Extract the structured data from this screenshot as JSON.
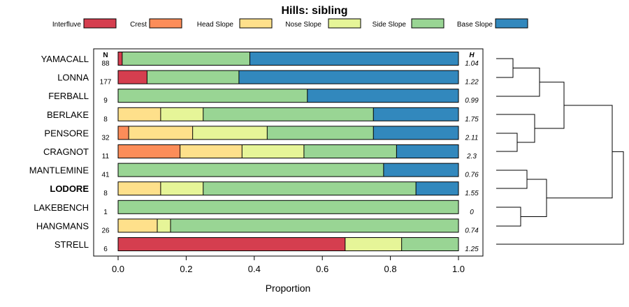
{
  "chart_data": {
    "type": "bar",
    "stacked": true,
    "orientation": "horizontal",
    "title": "Hills: sibling",
    "xlabel": "Proportion",
    "xlim": [
      0,
      1
    ],
    "xticks": [
      "0.0",
      "0.2",
      "0.4",
      "0.6",
      "0.8",
      "1.0"
    ],
    "n_header": "N",
    "h_header": "H",
    "legend": [
      {
        "name": "Interfluve",
        "color": "#D53E4F"
      },
      {
        "name": "Crest",
        "color": "#FC8D59"
      },
      {
        "name": "Head Slope",
        "color": "#FEE08B"
      },
      {
        "name": "Nose Slope",
        "color": "#E6F598"
      },
      {
        "name": "Side Slope",
        "color": "#99D594"
      },
      {
        "name": "Base Slope",
        "color": "#3288BD"
      }
    ],
    "rows": [
      {
        "name": "YAMACALL",
        "n": "88",
        "h": "1.04",
        "bold": false,
        "values": [
          0.012,
          0,
          0,
          0,
          0.375,
          0.613
        ]
      },
      {
        "name": "LONNA",
        "n": "177",
        "h": "1.22",
        "bold": false,
        "values": [
          0.085,
          0,
          0,
          0,
          0.27,
          0.645
        ]
      },
      {
        "name": "FERBALL",
        "n": "9",
        "h": "0.99",
        "bold": false,
        "values": [
          0,
          0,
          0,
          0,
          0.556,
          0.444
        ]
      },
      {
        "name": "BERLAKE",
        "n": "8",
        "h": "1.75",
        "bold": false,
        "values": [
          0,
          0,
          0.125,
          0.125,
          0.5,
          0.25
        ]
      },
      {
        "name": "PENSORE",
        "n": "32",
        "h": "2.11",
        "bold": false,
        "values": [
          0,
          0.031,
          0.188,
          0.219,
          0.312,
          0.25
        ]
      },
      {
        "name": "CRAGNOT",
        "n": "11",
        "h": "2.3",
        "bold": false,
        "values": [
          0,
          0.182,
          0.182,
          0.182,
          0.272,
          0.182
        ]
      },
      {
        "name": "MANTLEMINE",
        "n": "41",
        "h": "0.76",
        "bold": false,
        "values": [
          0,
          0,
          0,
          0,
          0.78,
          0.22
        ]
      },
      {
        "name": "LODORE",
        "n": "8",
        "h": "1.55",
        "bold": true,
        "values": [
          0,
          0,
          0.125,
          0.125,
          0.625,
          0.125
        ]
      },
      {
        "name": "LAKEBENCH",
        "n": "1",
        "h": "0",
        "bold": false,
        "values": [
          0,
          0,
          0,
          0,
          1.0,
          0
        ]
      },
      {
        "name": "HANGMANS",
        "n": "26",
        "h": "0.74",
        "bold": false,
        "values": [
          0,
          0,
          0.115,
          0.039,
          0.846,
          0
        ]
      },
      {
        "name": "STRELL",
        "n": "6",
        "h": "1.25",
        "bold": false,
        "values": [
          0.667,
          0,
          0,
          0.166,
          0.167,
          0
        ]
      }
    ]
  }
}
